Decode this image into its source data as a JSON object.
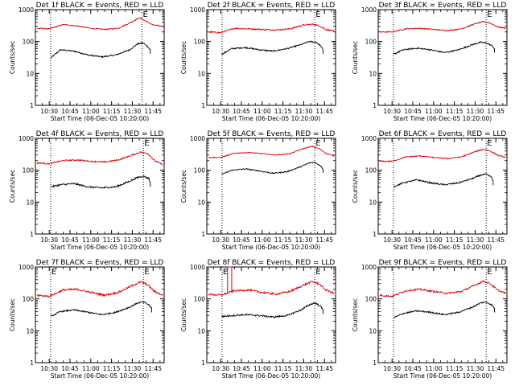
{
  "colors": {
    "events": "#000000",
    "lld": "#dd0000",
    "axes": "#000000",
    "background": "#ffffff"
  },
  "chart_data": [
    {
      "type": "line",
      "detector": "1f",
      "title": "Det 1f BLACK = Events, RED = LLD",
      "xlabel": "Start Time (06-Dec-05 10:20:00)",
      "ylabel": "Counts/sec",
      "x_ticks": [
        "10:30",
        "10:45",
        "11:00",
        "11:15",
        "11:30",
        "11:45"
      ],
      "y_scale": "log",
      "ylim": [
        1,
        1000
      ],
      "y_ticks": [
        "1",
        "10",
        "100",
        "1000"
      ],
      "xlim": [
        "10:20",
        "11:53"
      ],
      "markers": [
        "10:31",
        "11:37"
      ],
      "marker_labels": [
        "",
        "E"
      ],
      "series": [
        {
          "name": "BLACK",
          "color": "black",
          "x": [
            "10:31",
            "10:38",
            "10:48",
            "10:58",
            "11:08",
            "11:18",
            "11:28",
            "11:34",
            "11:38",
            "11:41",
            "11:43"
          ],
          "values": [
            30,
            55,
            50,
            38,
            33,
            38,
            55,
            85,
            90,
            70,
            55
          ],
          "noise": 0.05
        },
        {
          "name": "RED",
          "color": "red",
          "x": [
            "10:21",
            "10:30",
            "10:40",
            "10:50",
            "11:00",
            "11:10",
            "11:20",
            "11:30",
            "11:35",
            "11:40",
            "11:45",
            "11:52"
          ],
          "values": [
            260,
            250,
            340,
            310,
            260,
            240,
            260,
            420,
            560,
            430,
            330,
            300
          ],
          "noise": 0.04
        }
      ]
    },
    {
      "type": "line",
      "detector": "2f",
      "title": "Det 2f BLACK = Events, RED = LLD",
      "xlabel": "Start Time (06-Dec-05 10:20:00)",
      "ylabel": "Counts/sec",
      "x_ticks": [
        "10:30",
        "10:45",
        "11:00",
        "11:15",
        "11:30",
        "11:45"
      ],
      "y_scale": "log",
      "ylim": [
        1,
        1000
      ],
      "y_ticks": [
        "1",
        "10",
        "100",
        "1000"
      ],
      "xlim": [
        "10:20",
        "11:53"
      ],
      "markers": [
        "10:31",
        "11:38"
      ],
      "marker_labels": [
        "",
        "E"
      ],
      "series": [
        {
          "name": "BLACK",
          "color": "black",
          "x": [
            "10:31",
            "10:38",
            "10:48",
            "10:58",
            "11:08",
            "11:18",
            "11:28",
            "11:34",
            "11:39",
            "11:42",
            "11:44"
          ],
          "values": [
            40,
            60,
            65,
            55,
            50,
            60,
            80,
            100,
            95,
            75,
            55
          ],
          "noise": 0.05
        },
        {
          "name": "RED",
          "color": "red",
          "x": [
            "10:21",
            "10:30",
            "10:40",
            "10:50",
            "11:00",
            "11:10",
            "11:20",
            "11:30",
            "11:37",
            "11:42",
            "11:46",
            "11:52"
          ],
          "values": [
            200,
            190,
            260,
            250,
            240,
            230,
            250,
            330,
            350,
            300,
            240,
            210
          ],
          "noise": 0.05
        }
      ]
    },
    {
      "type": "line",
      "detector": "3f",
      "title": "Det 3f BLACK = Events, RED = LLD",
      "xlabel": "Start Time (06-Dec-05 10:20:00)",
      "ylabel": "Counts/sec",
      "x_ticks": [
        "10:30",
        "10:45",
        "11:00",
        "11:15",
        "11:30",
        "11:45"
      ],
      "y_scale": "log",
      "ylim": [
        1,
        1000
      ],
      "y_ticks": [
        "1",
        "10",
        "100",
        "1000"
      ],
      "xlim": [
        "10:20",
        "11:53"
      ],
      "markers": [
        "10:31",
        "11:38"
      ],
      "marker_labels": [
        "",
        "E"
      ],
      "series": [
        {
          "name": "BLACK",
          "color": "black",
          "x": [
            "10:31",
            "10:38",
            "10:48",
            "10:58",
            "11:08",
            "11:18",
            "11:28",
            "11:34",
            "11:38",
            "11:42",
            "11:44"
          ],
          "values": [
            40,
            55,
            62,
            55,
            45,
            55,
            80,
            95,
            90,
            75,
            60
          ],
          "noise": 0.05
        },
        {
          "name": "RED",
          "color": "red",
          "x": [
            "10:21",
            "10:30",
            "10:40",
            "10:50",
            "11:00",
            "11:10",
            "11:20",
            "11:30",
            "11:36",
            "11:41",
            "11:46",
            "11:52"
          ],
          "values": [
            200,
            200,
            250,
            260,
            240,
            220,
            250,
            360,
            420,
            380,
            290,
            260
          ],
          "noise": 0.04
        }
      ]
    },
    {
      "type": "line",
      "detector": "4f",
      "title": "Det 4f BLACK = Events, RED = LLD",
      "xlabel": "Start Time (06-Dec-05 10:20:00)",
      "ylabel": "Counts/sec",
      "x_ticks": [
        "10:30",
        "10:45",
        "11:00",
        "11:15",
        "11:30",
        "11:45"
      ],
      "y_scale": "log",
      "ylim": [
        1,
        1000
      ],
      "y_ticks": [
        "1",
        "10",
        "100",
        "1000"
      ],
      "xlim": [
        "10:20",
        "11:53"
      ],
      "markers": [
        "10:31",
        "11:38"
      ],
      "marker_labels": [
        "",
        "E"
      ],
      "series": [
        {
          "name": "BLACK",
          "color": "black",
          "x": [
            "10:31",
            "10:38",
            "10:48",
            "10:58",
            "11:08",
            "11:18",
            "11:28",
            "11:34",
            "11:38",
            "11:42",
            "11:43"
          ],
          "values": [
            30,
            35,
            38,
            30,
            28,
            30,
            45,
            60,
            65,
            55,
            40
          ],
          "noise": 0.06
        },
        {
          "name": "RED",
          "color": "red",
          "x": [
            "10:21",
            "10:30",
            "10:40",
            "10:50",
            "11:00",
            "11:10",
            "11:20",
            "11:30",
            "11:36",
            "11:41",
            "11:46",
            "11:52"
          ],
          "values": [
            170,
            160,
            200,
            210,
            190,
            180,
            210,
            300,
            370,
            340,
            200,
            150
          ],
          "noise": 0.05
        }
      ]
    },
    {
      "type": "line",
      "detector": "5f",
      "title": "Det 5f BLACK = Events, RED = LLD",
      "xlabel": "Start Time (06-Dec-05 10:20:00)",
      "ylabel": "Counts/sec",
      "x_ticks": [
        "10:30",
        "10:45",
        "11:00",
        "11:15",
        "11:30",
        "11:45"
      ],
      "y_scale": "log",
      "ylim": [
        1,
        1000
      ],
      "y_ticks": [
        "1",
        "10",
        "100",
        "1000"
      ],
      "xlim": [
        "10:20",
        "11:53"
      ],
      "markers": [
        "10:31",
        "11:38"
      ],
      "marker_labels": [
        "",
        "E"
      ],
      "series": [
        {
          "name": "BLACK",
          "color": "black",
          "x": [
            "10:31",
            "10:38",
            "10:48",
            "10:58",
            "11:08",
            "11:18",
            "11:28",
            "11:34",
            "11:38",
            "11:42",
            "11:44"
          ],
          "values": [
            75,
            100,
            110,
            95,
            80,
            90,
            130,
            170,
            175,
            140,
            110
          ],
          "noise": 0.04
        },
        {
          "name": "RED",
          "color": "red",
          "x": [
            "10:21",
            "10:30",
            "10:40",
            "10:50",
            "11:00",
            "11:10",
            "11:20",
            "11:30",
            "11:36",
            "11:41",
            "11:46",
            "11:52"
          ],
          "values": [
            250,
            250,
            340,
            360,
            330,
            300,
            330,
            480,
            560,
            480,
            340,
            280
          ],
          "noise": 0.03
        }
      ]
    },
    {
      "type": "line",
      "detector": "6f",
      "title": "Det 6f BLACK = Events, RED = LLD",
      "xlabel": "Start Time (06-Dec-05 10:20:00)",
      "ylabel": "Counts/sec",
      "x_ticks": [
        "10:30",
        "10:45",
        "11:00",
        "11:15",
        "11:30",
        "11:45"
      ],
      "y_scale": "log",
      "ylim": [
        1,
        1000
      ],
      "y_ticks": [
        "1",
        "10",
        "100",
        "1000"
      ],
      "xlim": [
        "10:20",
        "11:53"
      ],
      "markers": [
        "10:31",
        "11:38"
      ],
      "marker_labels": [
        "",
        "E"
      ],
      "series": [
        {
          "name": "BLACK",
          "color": "black",
          "x": [
            "10:31",
            "10:38",
            "10:48",
            "10:58",
            "11:08",
            "11:18",
            "11:28",
            "11:34",
            "11:38",
            "11:42",
            "11:43"
          ],
          "values": [
            30,
            40,
            50,
            40,
            35,
            40,
            55,
            70,
            75,
            60,
            45
          ],
          "noise": 0.05
        },
        {
          "name": "RED",
          "color": "red",
          "x": [
            "10:21",
            "10:30",
            "10:40",
            "10:50",
            "11:00",
            "11:10",
            "11:20",
            "11:30",
            "11:36",
            "11:41",
            "11:46",
            "11:52"
          ],
          "values": [
            190,
            190,
            260,
            280,
            250,
            230,
            260,
            380,
            450,
            400,
            300,
            250
          ],
          "noise": 0.04
        }
      ]
    },
    {
      "type": "line",
      "detector": "7f",
      "title": "Det 7f BLACK = Events, RED = LLD",
      "xlabel": "Start Time (06-Dec-05 10:20:00)",
      "ylabel": "Counts/sec",
      "x_ticks": [
        "10:30",
        "10:45",
        "11:00",
        "11:15",
        "11:30",
        "11:45"
      ],
      "y_scale": "log",
      "ylim": [
        1,
        1000
      ],
      "y_ticks": [
        "1",
        "10",
        "100",
        "1000"
      ],
      "xlim": [
        "10:20",
        "11:53"
      ],
      "markers": [
        "10:31",
        "11:38"
      ],
      "marker_labels": [
        "E",
        "E"
      ],
      "series": [
        {
          "name": "BLACK",
          "color": "black",
          "x": [
            "10:31",
            "10:38",
            "10:48",
            "10:58",
            "11:08",
            "11:18",
            "11:28",
            "11:34",
            "11:38",
            "11:42",
            "11:44"
          ],
          "values": [
            28,
            40,
            45,
            38,
            32,
            38,
            55,
            75,
            80,
            65,
            50
          ],
          "noise": 0.05
        },
        {
          "name": "RED",
          "color": "red",
          "x": [
            "10:21",
            "10:30",
            "10:40",
            "10:50",
            "11:00",
            "11:10",
            "11:20",
            "11:30",
            "11:36",
            "11:41",
            "11:46",
            "11:52"
          ],
          "values": [
            130,
            120,
            190,
            200,
            160,
            130,
            160,
            260,
            340,
            280,
            170,
            130
          ],
          "noise": 0.07
        }
      ]
    },
    {
      "type": "line",
      "detector": "8f",
      "title": "Det 8f BLACK = Events, RED = LLD",
      "xlabel": "Start Time (06-Dec-05 10:20:00)",
      "ylabel": "Counts/sec",
      "x_ticks": [
        "10:30",
        "10:45",
        "11:00",
        "11:15",
        "11:30",
        "11:45"
      ],
      "y_scale": "log",
      "ylim": [
        1,
        1000
      ],
      "y_ticks": [
        "1",
        "10",
        "100",
        "1000"
      ],
      "xlim": [
        "10:20",
        "11:53"
      ],
      "markers": [
        "10:31",
        "11:38"
      ],
      "marker_labels": [
        "E",
        "E"
      ],
      "spike": {
        "series": "RED",
        "x": [
          "10:35",
          "10:38"
        ],
        "value": 1000
      },
      "series": [
        {
          "name": "BLACK",
          "color": "black",
          "x": [
            "10:31",
            "10:38",
            "10:48",
            "10:58",
            "11:08",
            "11:18",
            "11:28",
            "11:34",
            "11:38",
            "11:42",
            "11:44"
          ],
          "values": [
            28,
            30,
            32,
            30,
            27,
            30,
            45,
            65,
            75,
            60,
            45
          ],
          "noise": 0.06
        },
        {
          "name": "RED",
          "color": "red",
          "x": [
            "10:21",
            "10:30",
            "10:40",
            "10:50",
            "11:00",
            "11:10",
            "11:20",
            "11:30",
            "11:36",
            "11:41",
            "11:46",
            "11:52"
          ],
          "values": [
            140,
            130,
            180,
            190,
            160,
            140,
            170,
            270,
            350,
            300,
            190,
            150
          ],
          "noise": 0.07
        }
      ]
    },
    {
      "type": "line",
      "detector": "9f",
      "title": "Det 9f BLACK = Events, RED = LLD",
      "xlabel": "Start Time (06-Dec-05 10:20:00)",
      "ylabel": "Counts/sec",
      "x_ticks": [
        "10:30",
        "10:45",
        "11:00",
        "11:15",
        "11:30",
        "11:45"
      ],
      "y_scale": "log",
      "ylim": [
        1,
        1000
      ],
      "y_ticks": [
        "1",
        "10",
        "100",
        "1000"
      ],
      "xlim": [
        "10:20",
        "11:53"
      ],
      "markers": [
        "10:31",
        "11:38"
      ],
      "marker_labels": [
        "",
        "E"
      ],
      "series": [
        {
          "name": "BLACK",
          "color": "black",
          "x": [
            "10:31",
            "10:38",
            "10:48",
            "10:58",
            "11:08",
            "11:18",
            "11:28",
            "11:34",
            "11:38",
            "11:42",
            "11:44"
          ],
          "values": [
            25,
            35,
            42,
            38,
            32,
            38,
            55,
            75,
            80,
            65,
            50
          ],
          "noise": 0.05
        },
        {
          "name": "RED",
          "color": "red",
          "x": [
            "10:21",
            "10:30",
            "10:40",
            "10:50",
            "11:00",
            "11:10",
            "11:20",
            "11:30",
            "11:36",
            "11:41",
            "11:46",
            "11:52"
          ],
          "values": [
            130,
            120,
            180,
            200,
            170,
            150,
            170,
            270,
            360,
            300,
            190,
            150
          ],
          "noise": 0.06
        }
      ]
    }
  ]
}
